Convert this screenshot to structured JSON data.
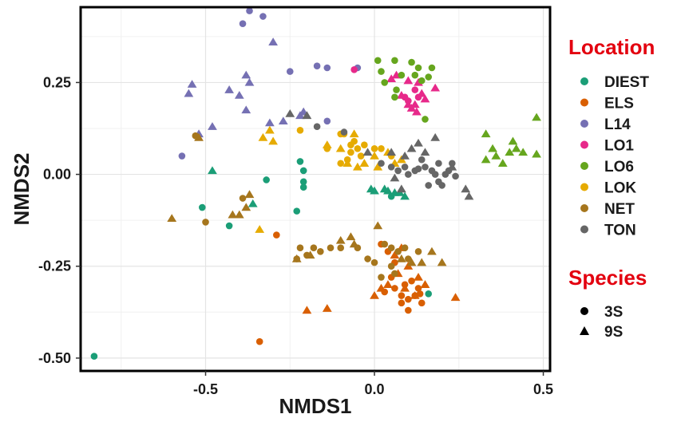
{
  "chart_data": {
    "type": "scatter",
    "title": "",
    "xlabel": "NMDS1",
    "ylabel": "NMDS2",
    "xlim": [
      -0.87,
      0.52
    ],
    "ylim": [
      -0.535,
      0.455
    ],
    "grid": true,
    "x_ticks": [
      {
        "value": -0.5,
        "label": "-0.5"
      },
      {
        "value": 0.0,
        "label": "0.0"
      },
      {
        "value": 0.5,
        "label": "0.5"
      }
    ],
    "y_ticks": [
      {
        "value": 0.25,
        "label": "0.25"
      },
      {
        "value": 0.0,
        "label": "0.00"
      },
      {
        "value": -0.25,
        "label": "-0.25"
      },
      {
        "value": -0.5,
        "label": "-0.50"
      }
    ],
    "legend_location": {
      "title": "Location",
      "title_color": "#e3000f",
      "entries": [
        {
          "label": "DIEST",
          "color": "#1b9e77"
        },
        {
          "label": "ELS",
          "color": "#d95f02"
        },
        {
          "label": "L14",
          "color": "#7570b3"
        },
        {
          "label": "LO1",
          "color": "#e7298a"
        },
        {
          "label": "LO6",
          "color": "#66a61e"
        },
        {
          "label": "LOK",
          "color": "#e6ab02"
        },
        {
          "label": "NET",
          "color": "#a6761d"
        },
        {
          "label": "TON",
          "color": "#666666"
        }
      ]
    },
    "legend_species": {
      "title": "Species",
      "title_color": "#e3000f",
      "entries": [
        {
          "label": "3S",
          "shape": "circle"
        },
        {
          "label": "9S",
          "shape": "triangle"
        }
      ]
    },
    "series": [
      {
        "name": "DIEST",
        "color": "#1b9e77",
        "points": [
          [
            -0.83,
            -0.495,
            "c"
          ],
          [
            -0.51,
            -0.09,
            "c"
          ],
          [
            -0.43,
            -0.14,
            "c"
          ],
          [
            -0.22,
            0.035,
            "c"
          ],
          [
            -0.21,
            0.01,
            "c"
          ],
          [
            -0.21,
            -0.02,
            "c"
          ],
          [
            -0.21,
            -0.035,
            "c"
          ],
          [
            -0.23,
            -0.1,
            "c"
          ],
          [
            -0.32,
            -0.015,
            "c"
          ],
          [
            0.05,
            -0.06,
            "c"
          ],
          [
            0.16,
            -0.325,
            "c"
          ],
          [
            -0.48,
            0.01,
            "t"
          ],
          [
            -0.36,
            -0.08,
            "t"
          ],
          [
            -0.01,
            -0.04,
            "t"
          ],
          [
            0.0,
            -0.045,
            "t"
          ],
          [
            0.04,
            -0.045,
            "t"
          ],
          [
            0.06,
            -0.05,
            "t"
          ],
          [
            0.09,
            -0.06,
            "t"
          ],
          [
            0.03,
            -0.04,
            "t"
          ],
          [
            0.075,
            -0.05,
            "t"
          ]
        ]
      },
      {
        "name": "ELS",
        "color": "#d95f02",
        "points": [
          [
            -0.29,
            -0.165,
            "c"
          ],
          [
            -0.34,
            -0.455,
            "c"
          ],
          [
            0.02,
            -0.19,
            "c"
          ],
          [
            0.04,
            -0.21,
            "c"
          ],
          [
            0.06,
            -0.24,
            "c"
          ],
          [
            0.05,
            -0.28,
            "c"
          ],
          [
            0.06,
            -0.31,
            "c"
          ],
          [
            0.08,
            -0.33,
            "c"
          ],
          [
            0.1,
            -0.34,
            "c"
          ],
          [
            0.13,
            -0.31,
            "c"
          ],
          [
            0.14,
            -0.35,
            "c"
          ],
          [
            0.1,
            -0.37,
            "c"
          ],
          [
            0.08,
            -0.35,
            "c"
          ],
          [
            0.12,
            -0.33,
            "c"
          ],
          [
            0.03,
            -0.32,
            "c"
          ],
          [
            0.09,
            -0.3,
            "c"
          ],
          [
            0.11,
            -0.29,
            "c"
          ],
          [
            0.135,
            -0.325,
            "c"
          ],
          [
            -0.2,
            -0.37,
            "t"
          ],
          [
            -0.14,
            -0.365,
            "t"
          ],
          [
            0.0,
            -0.33,
            "t"
          ],
          [
            0.02,
            -0.31,
            "t"
          ],
          [
            0.04,
            -0.3,
            "t"
          ],
          [
            0.07,
            -0.27,
            "t"
          ],
          [
            0.06,
            -0.22,
            "t"
          ],
          [
            0.1,
            -0.25,
            "t"
          ],
          [
            0.13,
            -0.28,
            "t"
          ],
          [
            0.15,
            -0.3,
            "t"
          ],
          [
            0.08,
            -0.2,
            "t"
          ],
          [
            0.24,
            -0.335,
            "t"
          ],
          [
            0.12,
            -0.33,
            "t"
          ],
          [
            0.09,
            -0.31,
            "t"
          ]
        ]
      },
      {
        "name": "L14",
        "color": "#7570b3",
        "points": [
          [
            -0.39,
            0.41,
            "c"
          ],
          [
            -0.37,
            0.445,
            "c"
          ],
          [
            -0.33,
            0.43,
            "c"
          ],
          [
            -0.25,
            0.28,
            "c"
          ],
          [
            -0.14,
            0.29,
            "c"
          ],
          [
            -0.17,
            0.295,
            "c"
          ],
          [
            -0.57,
            0.05,
            "c"
          ],
          [
            -0.14,
            0.145,
            "c"
          ],
          [
            -0.05,
            0.29,
            "c"
          ],
          [
            -0.3,
            0.36,
            "t"
          ],
          [
            -0.38,
            0.27,
            "t"
          ],
          [
            -0.37,
            0.25,
            "t"
          ],
          [
            -0.43,
            0.23,
            "t"
          ],
          [
            -0.4,
            0.215,
            "t"
          ],
          [
            -0.54,
            0.245,
            "t"
          ],
          [
            -0.55,
            0.22,
            "t"
          ],
          [
            -0.38,
            0.175,
            "t"
          ],
          [
            -0.31,
            0.14,
            "t"
          ],
          [
            -0.21,
            0.17,
            "t"
          ],
          [
            -0.22,
            0.16,
            "t"
          ],
          [
            -0.27,
            0.145,
            "t"
          ],
          [
            -0.48,
            0.13,
            "t"
          ],
          [
            -0.52,
            0.11,
            "t"
          ]
        ]
      },
      {
        "name": "LO1",
        "color": "#e7298a",
        "points": [
          [
            -0.06,
            0.285,
            "c"
          ],
          [
            0.1,
            0.2,
            "c"
          ],
          [
            0.12,
            0.23,
            "c"
          ],
          [
            0.09,
            0.21,
            "c"
          ],
          [
            0.13,
            0.21,
            "c"
          ],
          [
            0.05,
            0.26,
            "t"
          ],
          [
            0.065,
            0.27,
            "t"
          ],
          [
            0.1,
            0.255,
            "t"
          ],
          [
            0.12,
            0.19,
            "t"
          ],
          [
            0.14,
            0.22,
            "t"
          ],
          [
            0.18,
            0.235,
            "t"
          ],
          [
            0.11,
            0.18,
            "t"
          ],
          [
            0.13,
            0.25,
            "t"
          ],
          [
            0.15,
            0.205,
            "t"
          ],
          [
            0.1,
            0.19,
            "t"
          ],
          [
            0.125,
            0.17,
            "t"
          ],
          [
            0.08,
            0.215,
            "t"
          ]
        ]
      },
      {
        "name": "LO6",
        "color": "#66a61e",
        "points": [
          [
            0.01,
            0.31,
            "c"
          ],
          [
            0.06,
            0.31,
            "c"
          ],
          [
            0.11,
            0.305,
            "c"
          ],
          [
            0.13,
            0.29,
            "c"
          ],
          [
            0.17,
            0.29,
            "c"
          ],
          [
            0.16,
            0.265,
            "c"
          ],
          [
            0.12,
            0.27,
            "c"
          ],
          [
            0.08,
            0.27,
            "c"
          ],
          [
            0.03,
            0.25,
            "c"
          ],
          [
            0.02,
            0.28,
            "c"
          ],
          [
            0.15,
            0.15,
            "c"
          ],
          [
            0.065,
            0.23,
            "c"
          ],
          [
            0.06,
            0.21,
            "c"
          ],
          [
            0.14,
            0.255,
            "c"
          ],
          [
            0.33,
            0.11,
            "t"
          ],
          [
            0.35,
            0.07,
            "t"
          ],
          [
            0.33,
            0.04,
            "t"
          ],
          [
            0.36,
            0.05,
            "t"
          ],
          [
            0.38,
            0.03,
            "t"
          ],
          [
            0.4,
            0.06,
            "t"
          ],
          [
            0.41,
            0.09,
            "t"
          ],
          [
            0.42,
            0.07,
            "t"
          ],
          [
            0.44,
            0.06,
            "t"
          ],
          [
            0.48,
            0.155,
            "t"
          ],
          [
            0.48,
            0.055,
            "t"
          ]
        ]
      },
      {
        "name": "LOK",
        "color": "#e6ab02",
        "points": [
          [
            -0.22,
            0.12,
            "c"
          ],
          [
            -0.14,
            0.07,
            "c"
          ],
          [
            -0.1,
            0.11,
            "c"
          ],
          [
            -0.07,
            0.08,
            "c"
          ],
          [
            -0.04,
            0.05,
            "c"
          ],
          [
            -0.08,
            0.04,
            "c"
          ],
          [
            -0.07,
            0.06,
            "c"
          ],
          [
            0.0,
            0.07,
            "c"
          ],
          [
            0.05,
            0.05,
            "c"
          ],
          [
            -0.05,
            0.07,
            "c"
          ],
          [
            -0.09,
            0.11,
            "c"
          ],
          [
            -0.1,
            0.03,
            "c"
          ],
          [
            0.02,
            0.07,
            "c"
          ],
          [
            -0.06,
            0.09,
            "c"
          ],
          [
            -0.03,
            0.08,
            "c"
          ],
          [
            -0.33,
            0.1,
            "t"
          ],
          [
            -0.31,
            0.12,
            "t"
          ],
          [
            -0.3,
            0.09,
            "t"
          ],
          [
            -0.34,
            -0.15,
            "t"
          ],
          [
            -0.14,
            0.08,
            "t"
          ],
          [
            -0.1,
            0.07,
            "t"
          ],
          [
            -0.08,
            0.03,
            "t"
          ],
          [
            -0.05,
            0.02,
            "t"
          ],
          [
            -0.03,
            0.03,
            "t"
          ],
          [
            0.0,
            0.05,
            "t"
          ],
          [
            0.04,
            0.06,
            "t"
          ],
          [
            0.06,
            0.03,
            "t"
          ],
          [
            0.08,
            0.04,
            "t"
          ],
          [
            0.01,
            0.02,
            "t"
          ],
          [
            -0.06,
            0.11,
            "t"
          ]
        ]
      },
      {
        "name": "NET",
        "color": "#a6761d",
        "points": [
          [
            -0.53,
            0.105,
            "c"
          ],
          [
            -0.39,
            -0.065,
            "c"
          ],
          [
            -0.5,
            -0.13,
            "c"
          ],
          [
            -0.22,
            -0.2,
            "c"
          ],
          [
            -0.2,
            -0.22,
            "c"
          ],
          [
            -0.18,
            -0.2,
            "c"
          ],
          [
            -0.16,
            -0.21,
            "c"
          ],
          [
            -0.13,
            -0.2,
            "c"
          ],
          [
            -0.1,
            -0.2,
            "c"
          ],
          [
            -0.05,
            -0.2,
            "c"
          ],
          [
            -0.02,
            -0.23,
            "c"
          ],
          [
            0.0,
            -0.24,
            "c"
          ],
          [
            0.03,
            -0.19,
            "c"
          ],
          [
            0.05,
            -0.2,
            "c"
          ],
          [
            0.07,
            -0.21,
            "c"
          ],
          [
            0.09,
            -0.2,
            "c"
          ],
          [
            0.1,
            -0.23,
            "c"
          ],
          [
            -0.23,
            -0.23,
            "c"
          ],
          [
            0.02,
            -0.28,
            "c"
          ],
          [
            0.05,
            -0.25,
            "c"
          ],
          [
            0.06,
            -0.27,
            "c"
          ],
          [
            0.13,
            -0.21,
            "c"
          ],
          [
            -0.6,
            -0.12,
            "t"
          ],
          [
            -0.52,
            0.1,
            "t"
          ],
          [
            -0.4,
            -0.11,
            "t"
          ],
          [
            -0.38,
            -0.09,
            "t"
          ],
          [
            -0.37,
            -0.055,
            "t"
          ],
          [
            -0.42,
            -0.11,
            "t"
          ],
          [
            -0.23,
            -0.23,
            "t"
          ],
          [
            -0.19,
            -0.22,
            "t"
          ],
          [
            -0.1,
            -0.18,
            "t"
          ],
          [
            -0.07,
            -0.17,
            "t"
          ],
          [
            -0.06,
            -0.19,
            "t"
          ],
          [
            0.01,
            -0.14,
            "t"
          ],
          [
            0.08,
            -0.23,
            "t"
          ],
          [
            0.11,
            -0.24,
            "t"
          ],
          [
            0.14,
            -0.24,
            "t"
          ],
          [
            0.2,
            -0.24,
            "t"
          ],
          [
            0.17,
            -0.21,
            "t"
          ]
        ]
      },
      {
        "name": "TON",
        "color": "#666666",
        "points": [
          [
            -0.17,
            0.13,
            "c"
          ],
          [
            -0.09,
            0.115,
            "c"
          ],
          [
            0.02,
            0.03,
            "c"
          ],
          [
            0.05,
            0.02,
            "c"
          ],
          [
            0.07,
            0.01,
            "c"
          ],
          [
            0.09,
            0.02,
            "c"
          ],
          [
            0.1,
            0.0,
            "c"
          ],
          [
            0.12,
            0.01,
            "c"
          ],
          [
            0.14,
            0.04,
            "c"
          ],
          [
            0.15,
            0.02,
            "c"
          ],
          [
            0.17,
            0.01,
            "c"
          ],
          [
            0.18,
            0.0,
            "c"
          ],
          [
            0.16,
            -0.03,
            "c"
          ],
          [
            0.19,
            -0.02,
            "c"
          ],
          [
            0.21,
            0.0,
            "c"
          ],
          [
            0.22,
            0.01,
            "c"
          ],
          [
            0.24,
            -0.005,
            "c"
          ],
          [
            0.19,
            0.03,
            "c"
          ],
          [
            0.2,
            -0.03,
            "c"
          ],
          [
            0.13,
            0.015,
            "c"
          ],
          [
            0.23,
            0.03,
            "c"
          ],
          [
            -0.2,
            0.16,
            "t"
          ],
          [
            -0.25,
            0.165,
            "t"
          ],
          [
            -0.02,
            0.06,
            "t"
          ],
          [
            0.05,
            0.06,
            "t"
          ],
          [
            0.09,
            0.05,
            "t"
          ],
          [
            0.11,
            0.07,
            "t"
          ],
          [
            0.13,
            0.085,
            "t"
          ],
          [
            0.18,
            0.1,
            "t"
          ],
          [
            0.27,
            -0.04,
            "t"
          ],
          [
            0.28,
            -0.06,
            "t"
          ],
          [
            0.08,
            -0.04,
            "t"
          ],
          [
            0.06,
            -0.01,
            "t"
          ],
          [
            0.23,
            0.02,
            "t"
          ],
          [
            0.15,
            0.06,
            "t"
          ]
        ]
      }
    ]
  }
}
